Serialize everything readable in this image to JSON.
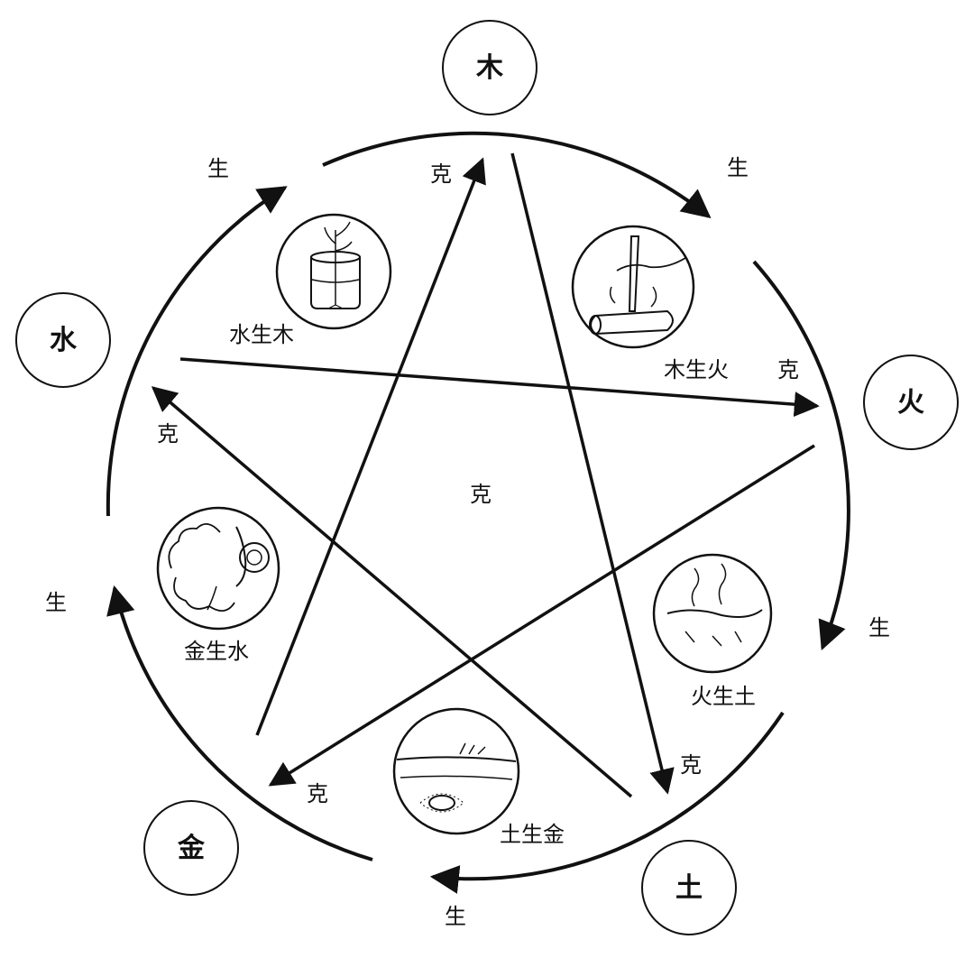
{
  "elements": {
    "wood": "木",
    "fire": "火",
    "earth": "土",
    "metal": "金",
    "water": "水"
  },
  "sheng_label": "生",
  "ke_label": "克",
  "illustrations": {
    "water_wood": "水生木",
    "wood_fire": "木生火",
    "fire_earth": "火生土",
    "earth_metal": "土生金",
    "metal_water": "金生水"
  },
  "colors": {
    "ink": "#111111",
    "background": "#ffffff"
  }
}
